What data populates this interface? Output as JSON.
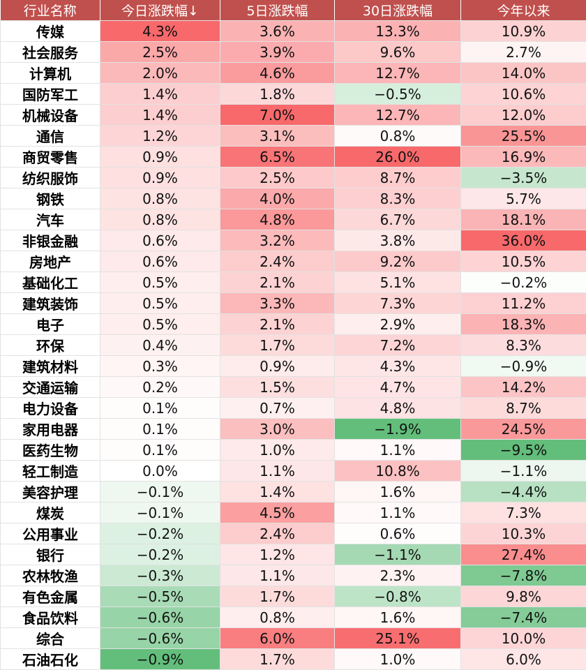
{
  "chart_data": {
    "type": "heatmap",
    "columns": [
      "行业名称",
      "今日涨跌幅↓",
      "5日涨跌幅",
      "30日涨跌幅",
      "今年以来"
    ],
    "rows": [
      {
        "name": "传媒",
        "values": [
          4.3,
          3.6,
          13.3,
          10.9
        ]
      },
      {
        "name": "社会服务",
        "values": [
          2.5,
          3.9,
          9.6,
          2.7
        ]
      },
      {
        "name": "计算机",
        "values": [
          2.0,
          4.6,
          12.7,
          14.0
        ]
      },
      {
        "name": "国防军工",
        "values": [
          1.4,
          1.8,
          -0.5,
          10.6
        ]
      },
      {
        "name": "机械设备",
        "values": [
          1.4,
          7.0,
          12.7,
          12.0
        ]
      },
      {
        "name": "通信",
        "values": [
          1.2,
          3.1,
          0.8,
          25.5
        ]
      },
      {
        "name": "商贸零售",
        "values": [
          0.9,
          6.5,
          26.0,
          16.9
        ]
      },
      {
        "name": "纺织服饰",
        "values": [
          0.9,
          2.5,
          8.7,
          -3.5
        ]
      },
      {
        "name": "钢铁",
        "values": [
          0.8,
          4.0,
          8.3,
          5.7
        ]
      },
      {
        "name": "汽车",
        "values": [
          0.8,
          4.8,
          6.7,
          18.1
        ]
      },
      {
        "name": "非银金融",
        "values": [
          0.6,
          3.2,
          3.8,
          36.0
        ]
      },
      {
        "name": "房地产",
        "values": [
          0.6,
          2.4,
          9.2,
          10.5
        ]
      },
      {
        "name": "基础化工",
        "values": [
          0.5,
          2.1,
          5.1,
          -0.2
        ]
      },
      {
        "name": "建筑装饰",
        "values": [
          0.5,
          3.3,
          7.3,
          11.2
        ]
      },
      {
        "name": "电子",
        "values": [
          0.5,
          2.1,
          2.9,
          18.3
        ]
      },
      {
        "name": "环保",
        "values": [
          0.4,
          1.7,
          7.2,
          8.3
        ]
      },
      {
        "name": "建筑材料",
        "values": [
          0.3,
          0.9,
          4.3,
          -0.9
        ]
      },
      {
        "name": "交通运输",
        "values": [
          0.2,
          1.5,
          4.7,
          14.2
        ]
      },
      {
        "name": "电力设备",
        "values": [
          0.1,
          0.7,
          4.8,
          8.7
        ]
      },
      {
        "name": "家用电器",
        "values": [
          0.1,
          3.0,
          -1.9,
          24.5
        ]
      },
      {
        "name": "医药生物",
        "values": [
          0.1,
          1.0,
          1.1,
          -9.5
        ]
      },
      {
        "name": "轻工制造",
        "values": [
          0.0,
          1.1,
          10.8,
          -1.1
        ]
      },
      {
        "name": "美容护理",
        "values": [
          -0.1,
          1.4,
          1.6,
          -4.4
        ]
      },
      {
        "name": "煤炭",
        "values": [
          -0.1,
          4.5,
          1.1,
          7.3
        ]
      },
      {
        "name": "公用事业",
        "values": [
          -0.2,
          2.4,
          0.6,
          10.3
        ]
      },
      {
        "name": "银行",
        "values": [
          -0.2,
          1.2,
          -1.1,
          27.4
        ]
      },
      {
        "name": "农林牧渔",
        "values": [
          -0.3,
          1.1,
          2.3,
          -7.8
        ]
      },
      {
        "name": "有色金属",
        "values": [
          -0.5,
          1.7,
          -0.8,
          9.8
        ]
      },
      {
        "name": "食品饮料",
        "values": [
          -0.6,
          0.8,
          1.6,
          -7.4
        ]
      },
      {
        "name": "综合",
        "values": [
          -0.6,
          6.0,
          25.1,
          10.0
        ]
      },
      {
        "name": "石油石化",
        "values": [
          -0.9,
          1.7,
          1.0,
          6.0
        ]
      }
    ],
    "value_suffix": "%",
    "colors": {
      "header_bg": "#c0504d",
      "header_text": "#ffffff",
      "positive_max": "#f8696b",
      "negative_max": "#63be7b",
      "neutral": "#ffffff"
    }
  }
}
